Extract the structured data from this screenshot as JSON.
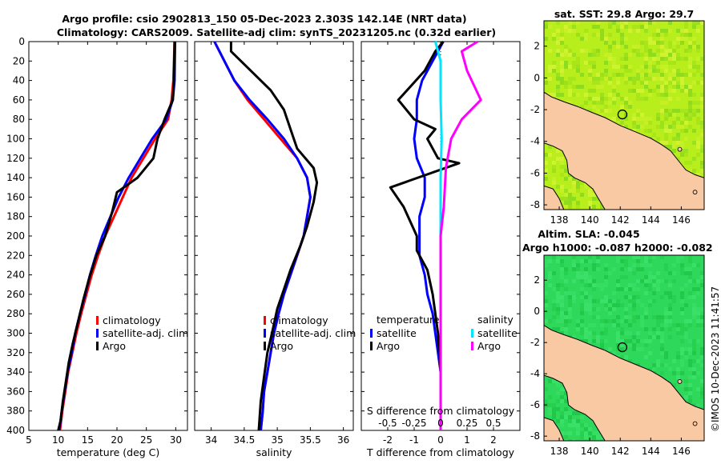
{
  "header": {
    "title_line1": "Argo profile: csio 2902813_150 05-Dec-2023 2.303S 142.14E (NRT data)",
    "title_line2": "Climatology: CARS2009. Satellite-adj clim: synTS_20231205.nc (0.32d earlier)"
  },
  "side_label": "©IMOS 10-Dec-2023 11:41:57",
  "colors": {
    "climatology": "#ff0000",
    "satellite": "#0000ff",
    "argo": "#000000",
    "sat_salinity": "#00e5ff",
    "argo_salinity": "#ff00ff"
  },
  "chart_data": [
    {
      "type": "line",
      "id": "temperature",
      "xlabel": "temperature (deg C)",
      "ylabel": "",
      "xlim": [
        5,
        32
      ],
      "ylim": [
        0,
        400
      ],
      "xticks": [
        5,
        10,
        15,
        20,
        25,
        30
      ],
      "yticks": [
        0,
        20,
        40,
        60,
        80,
        100,
        120,
        140,
        160,
        180,
        200,
        220,
        240,
        260,
        280,
        300,
        320,
        340,
        360,
        380,
        400
      ],
      "legend": [
        "climatology",
        "satellite-adj. clim",
        "Argo"
      ],
      "legend_position": "right",
      "series": [
        {
          "name": "climatology",
          "points": [
            [
              29.8,
              0
            ],
            [
              29.6,
              40
            ],
            [
              29.3,
              60
            ],
            [
              28.7,
              80
            ],
            [
              26.5,
              100
            ],
            [
              24.5,
              120
            ],
            [
              22.5,
              140
            ],
            [
              21,
              160
            ],
            [
              19.5,
              180
            ],
            [
              18,
              200
            ],
            [
              16.8,
              220
            ],
            [
              15.7,
              240
            ],
            [
              14.8,
              260
            ],
            [
              13.9,
              280
            ],
            [
              13.1,
              300
            ],
            [
              12.4,
              320
            ],
            [
              11.7,
              340
            ],
            [
              11.2,
              360
            ],
            [
              10.7,
              380
            ],
            [
              10.3,
              400
            ]
          ]
        },
        {
          "name": "satellite-adj. clim",
          "points": [
            [
              29.9,
              0
            ],
            [
              29.8,
              40
            ],
            [
              29.5,
              60
            ],
            [
              28.4,
              80
            ],
            [
              26,
              100
            ],
            [
              24,
              120
            ],
            [
              22,
              140
            ],
            [
              20.3,
              160
            ],
            [
              18.9,
              180
            ],
            [
              17.5,
              200
            ],
            [
              16.4,
              220
            ],
            [
              15.4,
              240
            ],
            [
              14.6,
              260
            ],
            [
              13.7,
              280
            ],
            [
              12.9,
              300
            ],
            [
              12.3,
              320
            ],
            [
              11.6,
              340
            ],
            [
              11.1,
              360
            ],
            [
              10.6,
              380
            ],
            [
              10.2,
              400
            ]
          ]
        },
        {
          "name": "Argo",
          "points": [
            [
              29.8,
              0
            ],
            [
              29.7,
              40
            ],
            [
              29.5,
              60
            ],
            [
              28.1,
              80
            ],
            [
              26.9,
              100
            ],
            [
              26.2,
              120
            ],
            [
              23.5,
              140
            ],
            [
              20,
              155
            ],
            [
              19.2,
              175
            ],
            [
              18,
              200
            ],
            [
              16.5,
              220
            ],
            [
              15.2,
              245
            ],
            [
              14.3,
              265
            ],
            [
              13.3,
              290
            ],
            [
              12.5,
              310
            ],
            [
              11.8,
              330
            ],
            [
              11.3,
              350
            ],
            [
              10.8,
              370
            ],
            [
              10.4,
              390
            ],
            [
              10,
              400
            ]
          ]
        }
      ]
    },
    {
      "type": "line",
      "id": "salinity",
      "xlabel": "salinity",
      "ylabel": "",
      "xlim": [
        33.75,
        36.15
      ],
      "ylim": [
        0,
        400
      ],
      "xticks": [
        34,
        34.5,
        35,
        35.5,
        36
      ],
      "legend": [
        "climatology",
        "satellite-adj. clim",
        "Argo"
      ],
      "legend_position": "right",
      "series": [
        {
          "name": "climatology",
          "points": [
            [
              34.05,
              0
            ],
            [
              34.2,
              20
            ],
            [
              34.35,
              40
            ],
            [
              34.55,
              60
            ],
            [
              34.8,
              80
            ],
            [
              35.05,
              100
            ],
            [
              35.3,
              120
            ],
            [
              35.45,
              140
            ],
            [
              35.5,
              160
            ],
            [
              35.45,
              180
            ],
            [
              35.4,
              200
            ],
            [
              35.3,
              220
            ],
            [
              35.2,
              240
            ],
            [
              35.1,
              260
            ],
            [
              35.02,
              280
            ],
            [
              34.95,
              300
            ],
            [
              34.9,
              320
            ],
            [
              34.85,
              340
            ],
            [
              34.8,
              360
            ],
            [
              34.78,
              380
            ],
            [
              34.75,
              400
            ]
          ]
        },
        {
          "name": "satellite-adj. clim",
          "points": [
            [
              34.05,
              0
            ],
            [
              34.2,
              20
            ],
            [
              34.35,
              40
            ],
            [
              34.58,
              60
            ],
            [
              34.85,
              80
            ],
            [
              35.1,
              100
            ],
            [
              35.3,
              120
            ],
            [
              35.45,
              140
            ],
            [
              35.5,
              160
            ],
            [
              35.45,
              180
            ],
            [
              35.4,
              200
            ],
            [
              35.3,
              220
            ],
            [
              35.2,
              240
            ],
            [
              35.1,
              260
            ],
            [
              35.02,
              280
            ],
            [
              34.95,
              300
            ],
            [
              34.9,
              320
            ],
            [
              34.85,
              340
            ],
            [
              34.8,
              360
            ],
            [
              34.78,
              380
            ],
            [
              34.75,
              400
            ]
          ]
        },
        {
          "name": "Argo",
          "points": [
            [
              34.3,
              0
            ],
            [
              34.3,
              10
            ],
            [
              34.6,
              30
            ],
            [
              34.9,
              50
            ],
            [
              35.1,
              70
            ],
            [
              35.2,
              90
            ],
            [
              35.3,
              110
            ],
            [
              35.55,
              130
            ],
            [
              35.6,
              145
            ],
            [
              35.55,
              165
            ],
            [
              35.45,
              190
            ],
            [
              35.35,
              210
            ],
            [
              35.2,
              235
            ],
            [
              35.1,
              255
            ],
            [
              35,
              275
            ],
            [
              34.92,
              300
            ],
            [
              34.85,
              320
            ],
            [
              34.8,
              345
            ],
            [
              34.75,
              370
            ],
            [
              34.72,
              400
            ]
          ]
        }
      ]
    },
    {
      "type": "line",
      "id": "differences",
      "xlabel": "T difference from climatology",
      "x2label": "S difference from climatology",
      "ylabel": "",
      "xlim": [
        -3,
        3
      ],
      "x2lim": [
        -0.75,
        0.75
      ],
      "ylim": [
        0,
        400
      ],
      "xticks": [
        -2,
        -1,
        0,
        1,
        2
      ],
      "x2ticks": [
        -0.5,
        -0.25,
        0,
        0.25,
        0.5
      ],
      "x2ticklabels": [
        "-0.5",
        "-0.25",
        "0",
        "0.25",
        "0.5"
      ],
      "legend_left_title": "temperature",
      "legend_right_title": "salinity",
      "legend_left": [
        "satellite",
        "Argo"
      ],
      "legend_right": [
        "satellite",
        "Argo"
      ],
      "series": [
        {
          "name": "T satellite",
          "axis": "T",
          "points": [
            [
              0.1,
              0
            ],
            [
              -0.3,
              20
            ],
            [
              -0.7,
              40
            ],
            [
              -0.9,
              60
            ],
            [
              -0.9,
              80
            ],
            [
              -1,
              100
            ],
            [
              -0.9,
              120
            ],
            [
              -0.6,
              140
            ],
            [
              -0.6,
              160
            ],
            [
              -0.8,
              180
            ],
            [
              -0.8,
              200
            ],
            [
              -0.8,
              220
            ],
            [
              -0.6,
              240
            ],
            [
              -0.5,
              260
            ],
            [
              -0.3,
              280
            ],
            [
              -0.2,
              300
            ],
            [
              -0.1,
              320
            ],
            [
              0,
              340
            ],
            [
              0,
              360
            ],
            [
              0,
              380
            ],
            [
              0,
              400
            ]
          ]
        },
        {
          "name": "T Argo",
          "axis": "T",
          "points": [
            [
              0.1,
              0
            ],
            [
              -0.2,
              10
            ],
            [
              -0.6,
              30
            ],
            [
              -1.6,
              60
            ],
            [
              -1,
              80
            ],
            [
              -0.2,
              90
            ],
            [
              -0.5,
              100
            ],
            [
              -0.1,
              120
            ],
            [
              0.7,
              125
            ],
            [
              -1.9,
              150
            ],
            [
              -1.4,
              170
            ],
            [
              -0.9,
              200
            ],
            [
              -0.9,
              215
            ],
            [
              -0.5,
              235
            ],
            [
              -0.3,
              260
            ],
            [
              -0.2,
              280
            ],
            [
              -0.1,
              300
            ],
            [
              0,
              340
            ],
            [
              0,
              400
            ]
          ]
        },
        {
          "name": "S satellite",
          "axis": "S",
          "points": [
            [
              -0.05,
              0
            ],
            [
              0,
              20
            ],
            [
              0,
              60
            ],
            [
              0.01,
              100
            ],
            [
              0,
              140
            ],
            [
              0,
              180
            ],
            [
              0,
              220
            ],
            [
              0,
              260
            ],
            [
              0,
              300
            ],
            [
              0,
              340
            ],
            [
              0,
              400
            ]
          ]
        },
        {
          "name": "S Argo",
          "axis": "S",
          "points": [
            [
              0.35,
              0
            ],
            [
              0.2,
              10
            ],
            [
              0.25,
              30
            ],
            [
              0.38,
              60
            ],
            [
              0.2,
              80
            ],
            [
              0.1,
              100
            ],
            [
              0.05,
              130
            ],
            [
              0.03,
              170
            ],
            [
              0,
              200
            ],
            [
              0,
              250
            ],
            [
              0,
              300
            ],
            [
              0,
              400
            ]
          ]
        }
      ]
    },
    {
      "type": "heatmap",
      "id": "sst_map",
      "title": "sat. SST: 29.8 Argo: 29.7",
      "xlim": [
        137,
        147.5
      ],
      "ylim": [
        -8.3,
        3.6
      ],
      "xticks": [
        138,
        140,
        142,
        144,
        146
      ],
      "yticks": [
        2,
        0,
        -2,
        -4,
        -6,
        -8
      ],
      "marker": {
        "lon": 142.14,
        "lat": -2.303
      }
    },
    {
      "type": "heatmap",
      "id": "sla_map",
      "title": "Altim. SLA: -0.045",
      "subtitle": "Argo h1000: -0.087 h2000: -0.082",
      "xlim": [
        137,
        147.5
      ],
      "ylim": [
        -8.3,
        3.6
      ],
      "xticks": [
        138,
        140,
        142,
        144,
        146
      ],
      "yticks": [
        2,
        0,
        -2,
        -4,
        -6,
        -8
      ],
      "marker": {
        "lon": 142.14,
        "lat": -2.303
      }
    }
  ]
}
